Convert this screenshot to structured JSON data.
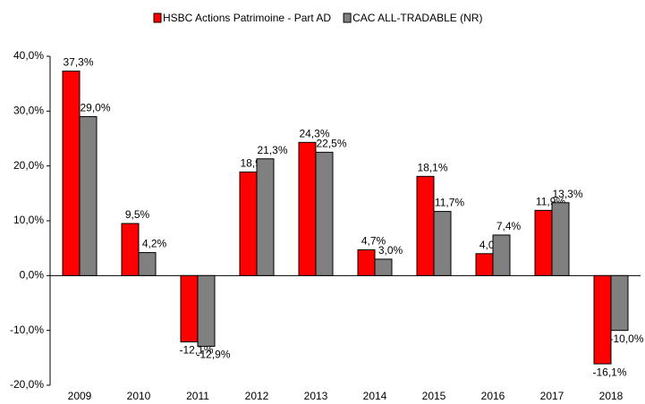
{
  "chart_data": {
    "type": "bar",
    "categories": [
      "2009",
      "2010",
      "2011",
      "2012",
      "2013",
      "2014",
      "2015",
      "2016",
      "2017",
      "2018"
    ],
    "series": [
      {
        "name": "HSBC Actions Patrimoine - Part AD",
        "color": "#ff0000",
        "values": [
          37.3,
          9.5,
          -12.1,
          18.9,
          24.3,
          4.7,
          18.1,
          4.0,
          11.9,
          -16.1
        ],
        "value_labels": [
          "37,3%",
          "9,5%",
          "-12,1%",
          "18,9%",
          "24,3%",
          "4,7%",
          "18,1%",
          "4,0%",
          "11,9%",
          "-16,1%"
        ]
      },
      {
        "name": "CAC ALL-TRADABLE (NR)",
        "color": "#808080",
        "values": [
          29.0,
          4.2,
          -12.9,
          21.3,
          22.5,
          3.0,
          11.7,
          7.4,
          13.3,
          -10.0
        ],
        "value_labels": [
          "29,0%",
          "4,2%",
          "-12,9%",
          "21,3%",
          "22,5%",
          "3,0%",
          "11,7%",
          "7,4%",
          "13,3%",
          "-10,0%"
        ]
      }
    ],
    "ylim": [
      -20,
      40
    ],
    "yticks": [
      {
        "value": -20,
        "label": "-20,0%"
      },
      {
        "value": -10,
        "label": "-10,0%"
      },
      {
        "value": 0,
        "label": "0,0%"
      },
      {
        "value": 10,
        "label": "10,0%"
      },
      {
        "value": 20,
        "label": "20,0%"
      },
      {
        "value": 30,
        "label": "30,0%"
      },
      {
        "value": 40,
        "label": "40,0%"
      }
    ],
    "legend": "top"
  }
}
